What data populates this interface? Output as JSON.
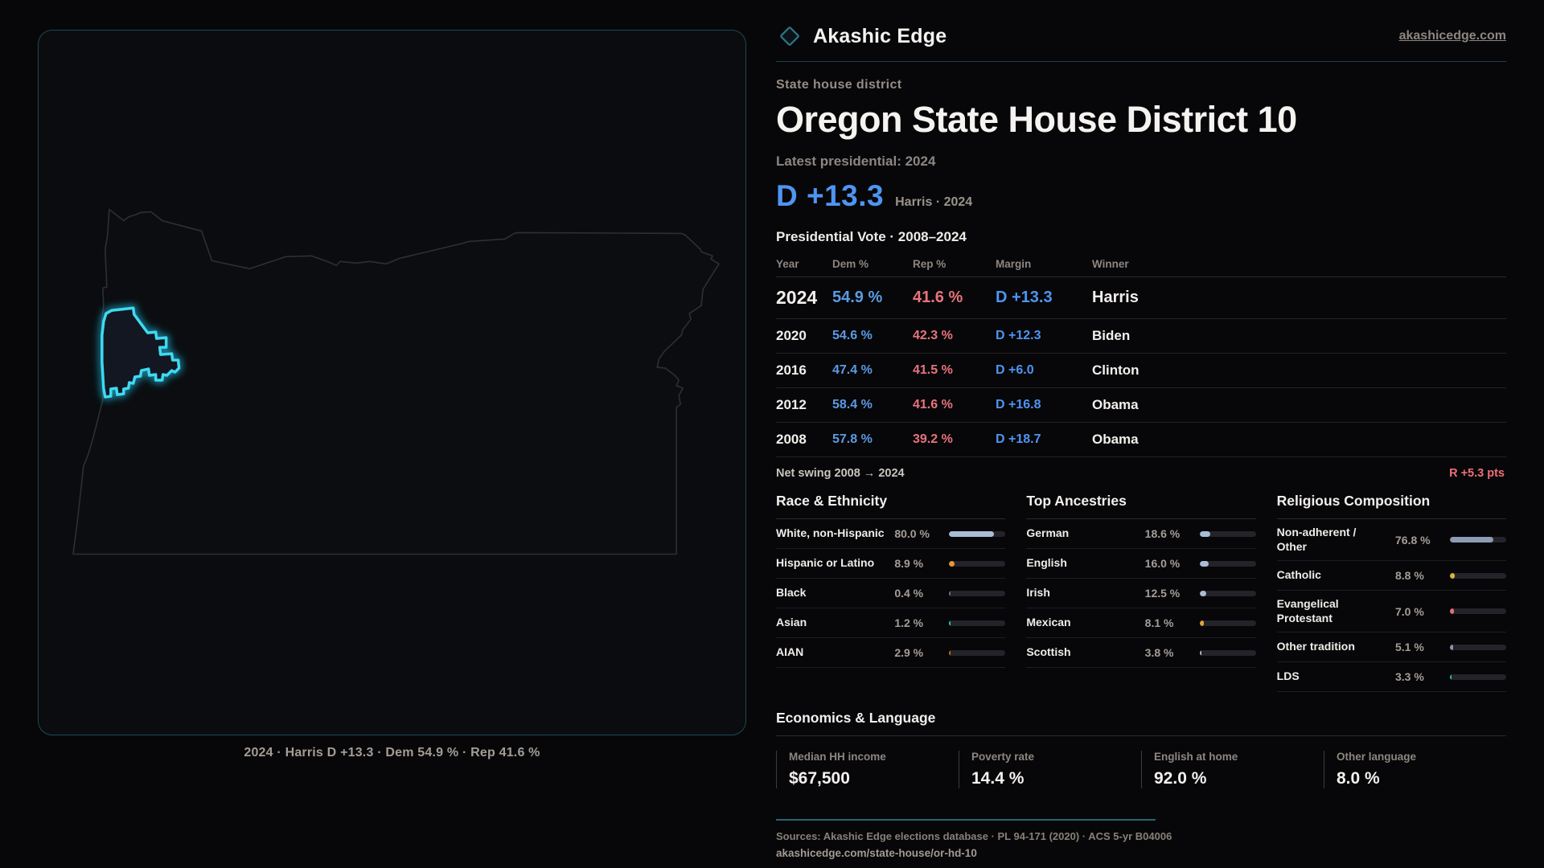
{
  "brand": {
    "name": "Akashic Edge",
    "site": "akashicedge.com"
  },
  "page": {
    "kicker": "State house district",
    "title": "Oregon State House District 10",
    "latest_label": "Latest presidential: 2024",
    "headline_margin": "D +13.3",
    "headline_context": "Harris · 2024",
    "table_title": "Presidential Vote · 2008–2024"
  },
  "map": {
    "caption": "2024 · Harris D +13.3 · Dem 54.9 % · Rep 41.6 %"
  },
  "election_table": {
    "headers": [
      "Year",
      "Dem %",
      "Rep %",
      "Margin",
      "Winner"
    ],
    "rows": [
      {
        "year": "2024",
        "dem": "54.9 %",
        "rep": "41.6 %",
        "margin": "D +13.3",
        "winner": "Harris"
      },
      {
        "year": "2020",
        "dem": "54.6 %",
        "rep": "42.3 %",
        "margin": "D +12.3",
        "winner": "Biden"
      },
      {
        "year": "2016",
        "dem": "47.4 %",
        "rep": "41.5 %",
        "margin": "D +6.0",
        "winner": "Clinton"
      },
      {
        "year": "2012",
        "dem": "58.4 %",
        "rep": "41.6 %",
        "margin": "D +16.8",
        "winner": "Obama"
      },
      {
        "year": "2008",
        "dem": "57.8 %",
        "rep": "39.2 %",
        "margin": "D +18.7",
        "winner": "Obama"
      }
    ],
    "net_swing_label": "Net swing 2008 → 2024",
    "net_swing_value": "R +5.3 pts"
  },
  "race": {
    "title": "Race & Ethnicity",
    "rows": [
      {
        "label": "White, non-Hispanic",
        "value": "80.0 %",
        "pct": 80.0,
        "color": "#a9bdd6"
      },
      {
        "label": "Hispanic or Latino",
        "value": "8.9 %",
        "pct": 8.9,
        "color": "#e39a35"
      },
      {
        "label": "Black",
        "value": "0.4 %",
        "pct": 0.4,
        "color": "#6b7280"
      },
      {
        "label": "Asian",
        "value": "1.2 %",
        "pct": 1.2,
        "color": "#2fc5a4"
      },
      {
        "label": "AIAN",
        "value": "2.9 %",
        "pct": 2.9,
        "color": "#c06a20"
      }
    ]
  },
  "ancestries": {
    "title": "Top Ancestries",
    "rows": [
      {
        "label": "German",
        "value": "18.6 %",
        "pct": 18.6,
        "color": "#a9bdd6"
      },
      {
        "label": "English",
        "value": "16.0 %",
        "pct": 16.0,
        "color": "#a9bdd6"
      },
      {
        "label": "Irish",
        "value": "12.5 %",
        "pct": 12.5,
        "color": "#a9bdd6"
      },
      {
        "label": "Mexican",
        "value": "8.1 %",
        "pct": 8.1,
        "color": "#e3a33c"
      },
      {
        "label": "Scottish",
        "value": "3.8 %",
        "pct": 3.8,
        "color": "#a9bdd6"
      }
    ]
  },
  "religion": {
    "title": "Religious Composition",
    "rows": [
      {
        "label": "Non-adherent / Other",
        "value": "76.8 %",
        "pct": 76.8,
        "color": "#8b9cb4"
      },
      {
        "label": "Catholic",
        "value": "8.8 %",
        "pct": 8.8,
        "color": "#ddb33c"
      },
      {
        "label": "Evangelical Protestant",
        "value": "7.0 %",
        "pct": 7.0,
        "color": "#e26e78"
      },
      {
        "label": "Other tradition",
        "value": "5.1 %",
        "pct": 5.1,
        "color": "#8b95a3"
      },
      {
        "label": "LDS",
        "value": "3.3 %",
        "pct": 3.3,
        "color": "#2bbfae"
      }
    ]
  },
  "economics": {
    "title": "Economics & Language",
    "stats": [
      {
        "label": "Median HH income",
        "value": "$67,500"
      },
      {
        "label": "Poverty rate",
        "value": "14.4 %"
      },
      {
        "label": "English at home",
        "value": "92.0 %"
      },
      {
        "label": "Other language",
        "value": "8.0 %"
      }
    ]
  },
  "footer": {
    "sources": "Sources: Akashic Edge elections database · PL 94-171 (2020) · ACS 5-yr B04006",
    "permalink": "akashicedge.com/state-house/or-hd-10"
  },
  "colors": {
    "dem_blue": "#4e95f2",
    "rep_red": "#e8737d",
    "accent_cyan": "#3fd9f2",
    "panel_border_teal": "#1d4a54"
  }
}
